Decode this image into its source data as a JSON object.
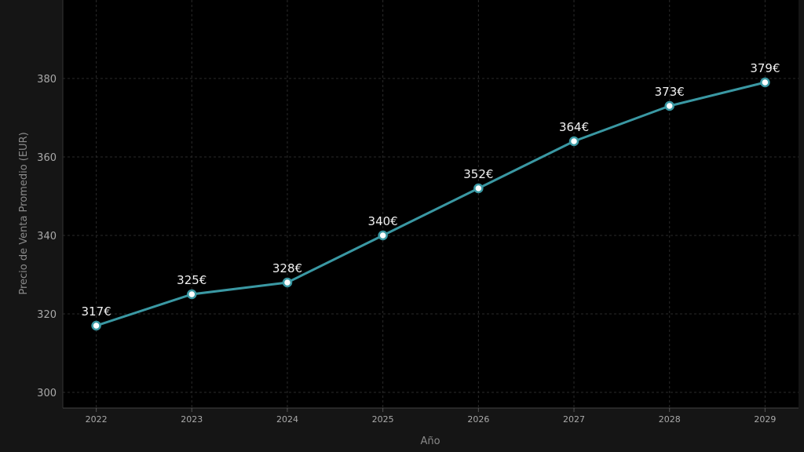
{
  "chart_data": {
    "type": "line",
    "title": "",
    "xlabel": "Año",
    "ylabel": "Precio de Venta Promedio (EUR)",
    "x": [
      2022,
      2023,
      2024,
      2025,
      2026,
      2027,
      2028,
      2029
    ],
    "series": [
      {
        "values": [
          317,
          325,
          328,
          340,
          352,
          364,
          373,
          379
        ],
        "labels": [
          "317€",
          "325€",
          "328€",
          "340€",
          "352€",
          "364€",
          "373€",
          "379€"
        ],
        "color": "#3a98a3"
      }
    ],
    "ylim": [
      296,
      400
    ],
    "yticks": [
      300,
      320,
      340,
      360,
      380
    ],
    "xlim": [
      2021.65,
      2029.35
    ],
    "grid": true,
    "legend": "none",
    "colors": {
      "background": "#151515",
      "plot_background": "#000000",
      "grid": "#2a2a2a",
      "marker_fill": "#ffffff"
    }
  }
}
